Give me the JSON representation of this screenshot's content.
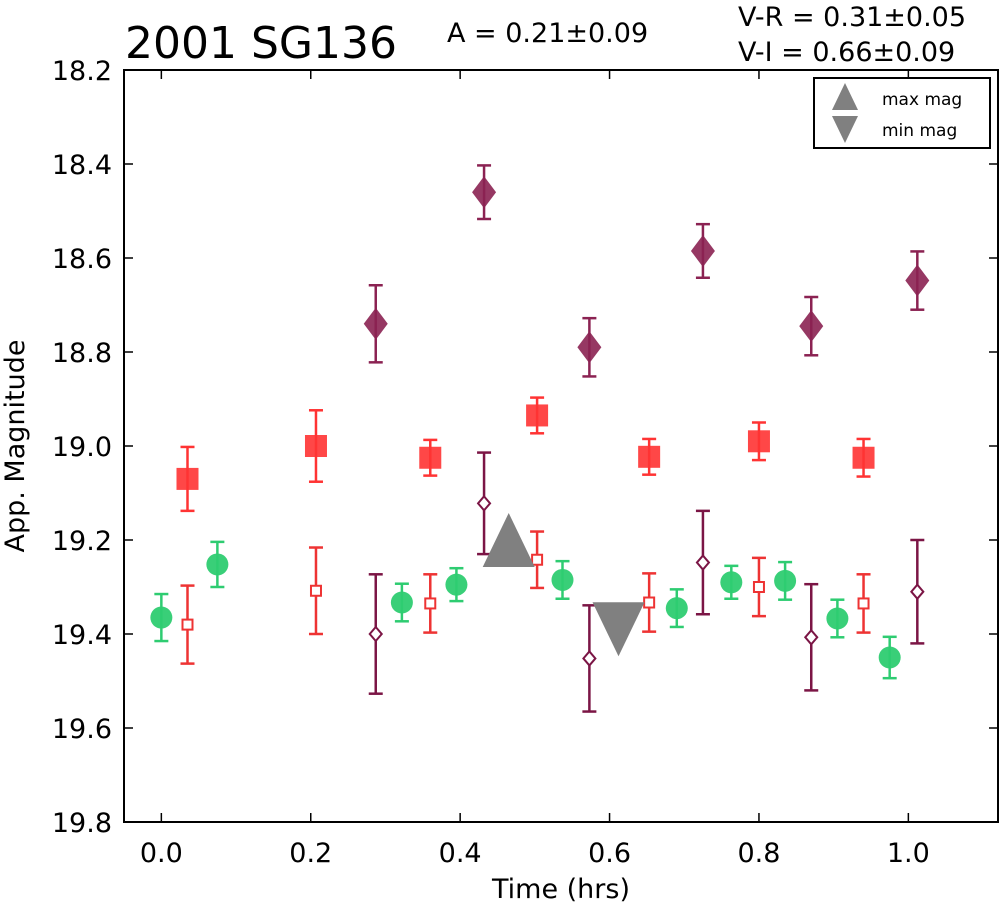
{
  "chart_data": {
    "type": "scatter",
    "title": "2001 SG136",
    "amplitude_text": "A  = 0.21±0.09",
    "color_vr_text": "V-R = 0.31±0.05",
    "color_vi_text": "V-I  = 0.66±0.09",
    "xlabel": "Time (hrs)",
    "ylabel": "App. Magnitude",
    "xlim": [
      -0.05,
      1.12
    ],
    "ylim": [
      18.2,
      19.8
    ],
    "y_inverted": true,
    "x_ticks": [
      "0.0",
      "0.2",
      "0.4",
      "0.6",
      "0.8",
      "1.0"
    ],
    "y_ticks": [
      "18.2",
      "18.4",
      "18.6",
      "18.8",
      "19.0",
      "19.2",
      "19.4",
      "19.6",
      "19.8"
    ],
    "legend_position": "top-right",
    "legend": [
      {
        "label": "max mag",
        "marker": "triangle-up"
      },
      {
        "label": "min mag",
        "marker": "triangle-down"
      }
    ],
    "series": [
      {
        "marker": "circle",
        "filled": true,
        "color": "#2ecc71",
        "points": [
          {
            "x": 0.0,
            "y": 19.365,
            "err": 0.05
          },
          {
            "x": 0.075,
            "y": 19.252,
            "err": 0.048
          },
          {
            "x": 0.322,
            "y": 19.333,
            "err": 0.04
          },
          {
            "x": 0.395,
            "y": 19.295,
            "err": 0.035
          },
          {
            "x": 0.537,
            "y": 19.285,
            "err": 0.04
          },
          {
            "x": 0.69,
            "y": 19.345,
            "err": 0.04
          },
          {
            "x": 0.763,
            "y": 19.29,
            "err": 0.035
          },
          {
            "x": 0.835,
            "y": 19.287,
            "err": 0.04
          },
          {
            "x": 0.905,
            "y": 19.367,
            "err": 0.04
          },
          {
            "x": 0.975,
            "y": 19.45,
            "err": 0.044
          }
        ]
      },
      {
        "marker": "square",
        "filled": true,
        "color": "#ff3333",
        "points": [
          {
            "x": 0.035,
            "y": 19.07,
            "err": 0.068
          },
          {
            "x": 0.207,
            "y": 19.0,
            "err": 0.076
          },
          {
            "x": 0.36,
            "y": 19.025,
            "err": 0.038
          },
          {
            "x": 0.503,
            "y": 18.935,
            "err": 0.038
          },
          {
            "x": 0.653,
            "y": 19.023,
            "err": 0.038
          },
          {
            "x": 0.8,
            "y": 18.99,
            "err": 0.04
          },
          {
            "x": 0.94,
            "y": 19.025,
            "err": 0.04
          }
        ]
      },
      {
        "marker": "square",
        "filled": false,
        "color": "#ee3333",
        "points": [
          {
            "x": 0.035,
            "y": 19.38,
            "err": 0.083
          },
          {
            "x": 0.207,
            "y": 19.308,
            "err": 0.092
          },
          {
            "x": 0.36,
            "y": 19.335,
            "err": 0.062
          },
          {
            "x": 0.503,
            "y": 19.242,
            "err": 0.06
          },
          {
            "x": 0.653,
            "y": 19.333,
            "err": 0.062
          },
          {
            "x": 0.8,
            "y": 19.3,
            "err": 0.062
          },
          {
            "x": 0.94,
            "y": 19.335,
            "err": 0.062
          }
        ]
      },
      {
        "marker": "diamond",
        "filled": true,
        "color": "#8b2252",
        "points": [
          {
            "x": 0.287,
            "y": 18.74,
            "err": 0.082
          },
          {
            "x": 0.432,
            "y": 18.46,
            "err": 0.057
          },
          {
            "x": 0.573,
            "y": 18.79,
            "err": 0.062
          },
          {
            "x": 0.725,
            "y": 18.585,
            "err": 0.057
          },
          {
            "x": 0.87,
            "y": 18.745,
            "err": 0.062
          },
          {
            "x": 1.012,
            "y": 18.648,
            "err": 0.062
          }
        ]
      },
      {
        "marker": "diamond",
        "filled": false,
        "color": "#7b1545",
        "points": [
          {
            "x": 0.287,
            "y": 19.4,
            "err": 0.127
          },
          {
            "x": 0.432,
            "y": 19.122,
            "err": 0.108
          },
          {
            "x": 0.573,
            "y": 19.452,
            "err": 0.113
          },
          {
            "x": 0.725,
            "y": 19.248,
            "err": 0.11
          },
          {
            "x": 0.87,
            "y": 19.407,
            "err": 0.113
          },
          {
            "x": 1.012,
            "y": 19.31,
            "err": 0.11
          }
        ]
      }
    ],
    "extrema": [
      {
        "marker": "triangle-up",
        "x": 0.465,
        "y": 19.2,
        "color": "#808080"
      },
      {
        "marker": "triangle-down",
        "x": 0.612,
        "y": 19.39,
        "color": "#808080"
      }
    ]
  }
}
